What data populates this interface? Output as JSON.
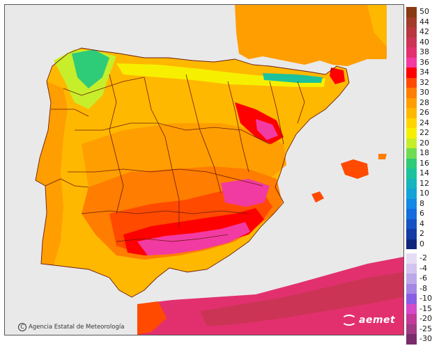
{
  "credit": {
    "copyright_symbol": "C",
    "agency": "Agencia Estatal de Meteorología"
  },
  "logo": {
    "text": "aemet"
  },
  "legend": {
    "warm": [
      {
        "label": "50",
        "color": "#8a3a12"
      },
      {
        "label": "44",
        "color": "#a23b2a"
      },
      {
        "label": "42",
        "color": "#b8373e"
      },
      {
        "label": "40",
        "color": "#cc3456"
      },
      {
        "label": "38",
        "color": "#e2306f"
      },
      {
        "label": "36",
        "color": "#f23aa3"
      },
      {
        "label": "34",
        "color": "#ff0000"
      },
      {
        "label": "32",
        "color": "#ff4a00"
      },
      {
        "label": "30",
        "color": "#ff7d00"
      },
      {
        "label": "28",
        "color": "#ff9e00"
      },
      {
        "label": "26",
        "color": "#ffb800"
      },
      {
        "label": "24",
        "color": "#ffd500"
      },
      {
        "label": "22",
        "color": "#f6f000"
      },
      {
        "label": "20",
        "color": "#c7ee2a"
      },
      {
        "label": "18",
        "color": "#6fdc52"
      },
      {
        "label": "16",
        "color": "#2ecb78"
      },
      {
        "label": "14",
        "color": "#1cc29c"
      },
      {
        "label": "12",
        "color": "#16b4bc"
      },
      {
        "label": "10",
        "color": "#14a3d8"
      },
      {
        "label": "8",
        "color": "#1488e6"
      },
      {
        "label": "6",
        "color": "#146ddc"
      },
      {
        "label": "4",
        "color": "#1552c4"
      },
      {
        "label": "2",
        "color": "#143aa4"
      },
      {
        "label": "0",
        "color": "#10257c"
      }
    ],
    "cold": [
      {
        "label": "-2",
        "color": "#e6dcf4"
      },
      {
        "label": "-4",
        "color": "#d2c4ee"
      },
      {
        "label": "-6",
        "color": "#bca8e8"
      },
      {
        "label": "-8",
        "color": "#a486e4"
      },
      {
        "label": "-10",
        "color": "#8a5ee4"
      },
      {
        "label": "-15",
        "color": "#d44ac8"
      },
      {
        "label": "-20",
        "color": "#c43a98"
      },
      {
        "label": "-25",
        "color": "#a23a86"
      },
      {
        "label": "-30",
        "color": "#7a2c6a"
      }
    ]
  }
}
